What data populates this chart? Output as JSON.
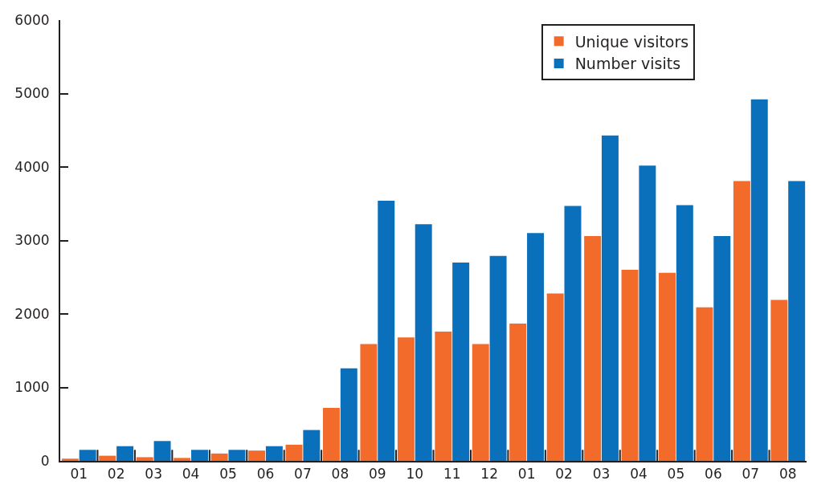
{
  "chart_data": {
    "type": "bar",
    "categories": [
      "01",
      "02",
      "03",
      "04",
      "05",
      "06",
      "07",
      "08",
      "09",
      "10",
      "11",
      "12",
      "01",
      "02",
      "03",
      "04",
      "05",
      "06",
      "07",
      "08"
    ],
    "series": [
      {
        "name": "Unique visitors",
        "color": "#f26b2a",
        "values": [
          30,
          70,
          50,
          40,
          100,
          140,
          220,
          720,
          1590,
          1680,
          1760,
          1590,
          1870,
          2280,
          3060,
          2600,
          2560,
          2090,
          3810,
          2190
        ]
      },
      {
        "name": "Number visits",
        "color": "#0b70bb",
        "values": [
          150,
          200,
          270,
          150,
          150,
          200,
          420,
          1260,
          3540,
          3220,
          2700,
          2790,
          3100,
          3470,
          4430,
          4020,
          3480,
          3060,
          4920,
          3810
        ]
      }
    ],
    "ylim": [
      0,
      6000
    ],
    "yticks": [
      0,
      1000,
      2000,
      3000,
      4000,
      5000,
      6000
    ],
    "legend": "top right"
  }
}
